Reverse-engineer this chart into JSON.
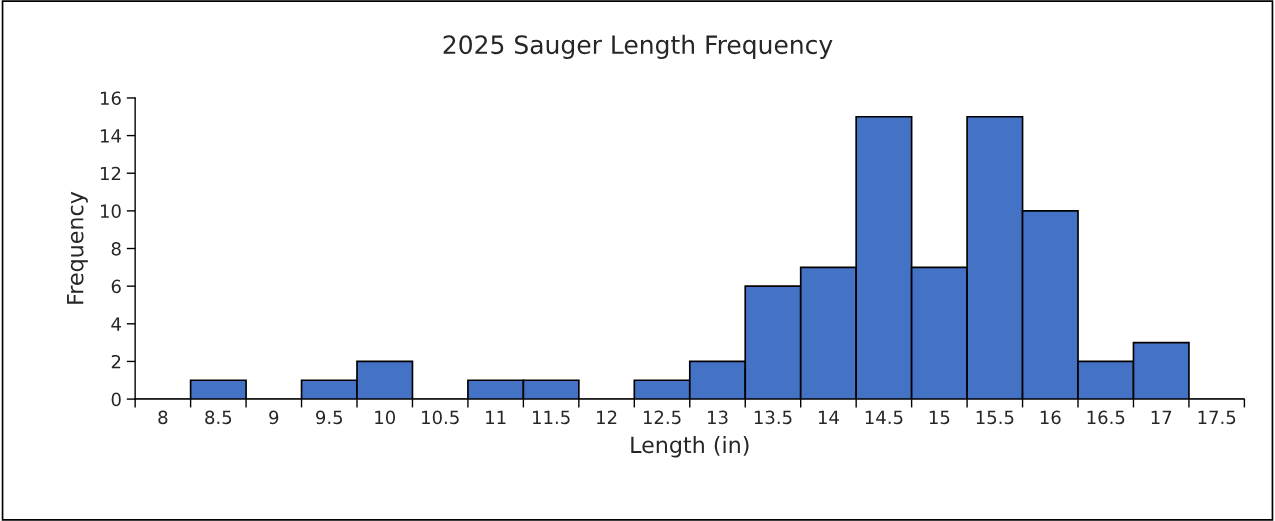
{
  "chart_data": {
    "type": "bar",
    "title": "2025 Sauger Length Frequency",
    "xlabel": "Length (in)",
    "ylabel": "Frequency",
    "categories": [
      "8",
      "8.5",
      "9",
      "9.5",
      "10",
      "10.5",
      "11",
      "11.5",
      "12",
      "12.5",
      "13",
      "13.5",
      "14",
      "14.5",
      "15",
      "15.5",
      "16",
      "16.5",
      "17",
      "17.5"
    ],
    "values": [
      0,
      1,
      0,
      1,
      2,
      0,
      1,
      1,
      0,
      1,
      2,
      6,
      7,
      15,
      7,
      15,
      10,
      2,
      3,
      0
    ],
    "color": "#4472c4",
    "ylim": [
      0,
      16
    ],
    "yticks": [
      0,
      2,
      4,
      6,
      8,
      10,
      12,
      14,
      16
    ],
    "grid": false,
    "legend": false
  }
}
